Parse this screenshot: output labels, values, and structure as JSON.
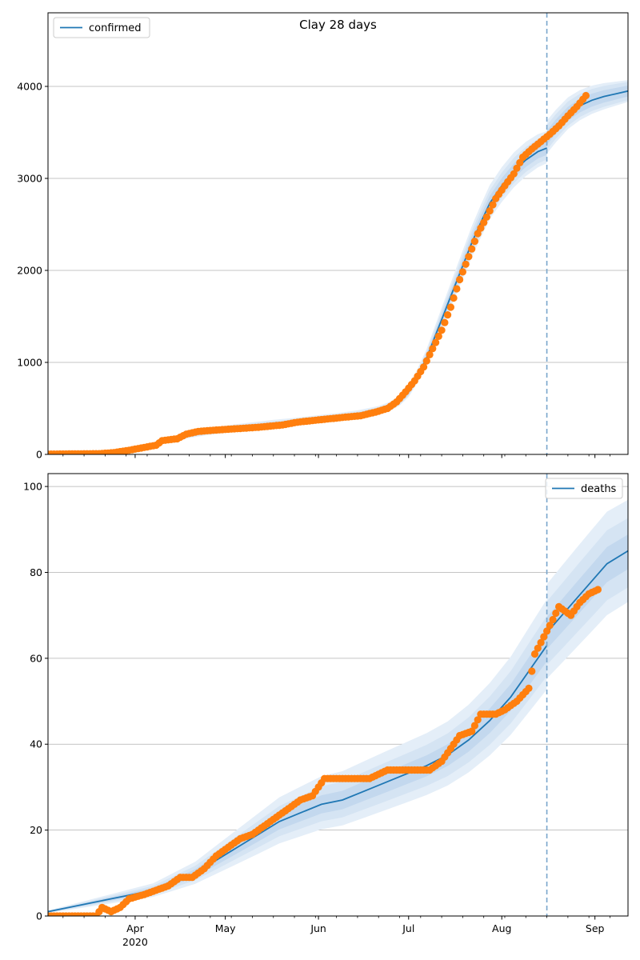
{
  "chart_data": [
    {
      "type": "line",
      "title": "Clay 28 days",
      "xlabel": "",
      "ylabel": "",
      "ylim": [
        0,
        4800
      ],
      "xlim": [
        "2020-03-03",
        "2020-09-12"
      ],
      "grid": "y",
      "legend": "top-left",
      "forecast_start": "2020-08-16",
      "y_ticks": [
        0,
        1000,
        2000,
        3000,
        4000
      ],
      "x_ticks": [
        {
          "date": "2020-04-01",
          "label": "Apr",
          "label2": "2020"
        },
        {
          "date": "2020-05-01",
          "label": "May",
          "label2": ""
        },
        {
          "date": "2020-06-01",
          "label": "Jun",
          "label2": ""
        },
        {
          "date": "2020-07-01",
          "label": "Jul",
          "label2": ""
        },
        {
          "date": "2020-08-01",
          "label": "Aug",
          "label2": ""
        },
        {
          "date": "2020-09-01",
          "label": "Sep",
          "label2": ""
        }
      ],
      "model": {
        "name": "confirmed",
        "color": "#1f77b4",
        "points": [
          [
            "2020-03-03",
            3
          ],
          [
            "2020-03-15",
            8
          ],
          [
            "2020-03-22",
            20
          ],
          [
            "2020-03-29",
            45
          ],
          [
            "2020-04-05",
            90
          ],
          [
            "2020-04-12",
            150
          ],
          [
            "2020-04-19",
            210
          ],
          [
            "2020-04-26",
            250
          ],
          [
            "2020-05-03",
            280
          ],
          [
            "2020-05-10",
            305
          ],
          [
            "2020-05-17",
            330
          ],
          [
            "2020-05-24",
            350
          ],
          [
            "2020-05-31",
            375
          ],
          [
            "2020-06-07",
            400
          ],
          [
            "2020-06-14",
            430
          ],
          [
            "2020-06-21",
            475
          ],
          [
            "2020-06-25",
            520
          ],
          [
            "2020-06-28",
            580
          ],
          [
            "2020-07-01",
            680
          ],
          [
            "2020-07-04",
            850
          ],
          [
            "2020-07-07",
            1050
          ],
          [
            "2020-07-10",
            1300
          ],
          [
            "2020-07-13",
            1550
          ],
          [
            "2020-07-16",
            1800
          ],
          [
            "2020-07-19",
            2050
          ],
          [
            "2020-07-22",
            2300
          ],
          [
            "2020-07-25",
            2520
          ],
          [
            "2020-07-28",
            2730
          ],
          [
            "2020-08-01",
            2920
          ],
          [
            "2020-08-05",
            3080
          ],
          [
            "2020-08-09",
            3200
          ],
          [
            "2020-08-13",
            3290
          ],
          [
            "2020-08-16",
            3330
          ],
          [
            "2020-08-16",
            3440
          ],
          [
            "2020-08-19",
            3560
          ],
          [
            "2020-08-23",
            3700
          ],
          [
            "2020-08-27",
            3790
          ],
          [
            "2020-08-31",
            3850
          ],
          [
            "2020-09-04",
            3890
          ],
          [
            "2020-09-08",
            3920
          ],
          [
            "2020-09-12",
            3950
          ]
        ],
        "bands": [
          {
            "lo": [
              0.8,
              0.9,
              0.97
            ],
            "hi": [
              1.2,
              1.12,
              1.03
            ]
          },
          {
            "lo": [
              0.86,
              0.93,
              0.975
            ],
            "hi": [
              1.14,
              1.08,
              1.025
            ]
          },
          {
            "lo": [
              0.92,
              0.96,
              0.985
            ],
            "hi": [
              1.08,
              1.045,
              1.015
            ]
          }
        ]
      },
      "observed": {
        "color": "#ff7f0e",
        "points": [
          [
            "2020-03-03",
            3
          ],
          [
            "2020-03-20",
            8
          ],
          [
            "2020-03-25",
            20
          ],
          [
            "2020-03-30",
            45
          ],
          [
            "2020-04-03",
            70
          ],
          [
            "2020-04-08",
            100
          ],
          [
            "2020-04-10",
            150
          ],
          [
            "2020-04-15",
            170
          ],
          [
            "2020-04-18",
            220
          ],
          [
            "2020-04-22",
            250
          ],
          [
            "2020-04-28",
            265
          ],
          [
            "2020-05-05",
            280
          ],
          [
            "2020-05-12",
            295
          ],
          [
            "2020-05-20",
            320
          ],
          [
            "2020-05-25",
            350
          ],
          [
            "2020-06-01",
            375
          ],
          [
            "2020-06-10",
            405
          ],
          [
            "2020-06-15",
            420
          ],
          [
            "2020-06-20",
            460
          ],
          [
            "2020-06-24",
            500
          ],
          [
            "2020-06-27",
            570
          ],
          [
            "2020-06-30",
            680
          ],
          [
            "2020-07-03",
            800
          ],
          [
            "2020-07-06",
            950
          ],
          [
            "2020-07-09",
            1150
          ],
          [
            "2020-07-12",
            1350
          ],
          [
            "2020-07-15",
            1600
          ],
          [
            "2020-07-18",
            1900
          ],
          [
            "2020-07-21",
            2150
          ],
          [
            "2020-07-24",
            2400
          ],
          [
            "2020-07-27",
            2580
          ],
          [
            "2020-07-30",
            2780
          ],
          [
            "2020-08-02",
            2920
          ],
          [
            "2020-08-05",
            3050
          ],
          [
            "2020-08-08",
            3230
          ],
          [
            "2020-08-11",
            3320
          ],
          [
            "2020-08-14",
            3400
          ],
          [
            "2020-08-17",
            3480
          ],
          [
            "2020-08-20",
            3570
          ],
          [
            "2020-08-23",
            3680
          ],
          [
            "2020-08-26",
            3780
          ],
          [
            "2020-08-29",
            3900
          ]
        ]
      }
    },
    {
      "type": "line",
      "title": "",
      "xlabel": "",
      "ylabel": "",
      "ylim": [
        0,
        103
      ],
      "xlim": [
        "2020-03-03",
        "2020-09-12"
      ],
      "grid": "y",
      "legend": "top-right",
      "forecast_start": "2020-08-16",
      "y_ticks": [
        0,
        20,
        40,
        60,
        80,
        100
      ],
      "x_ticks": [
        {
          "date": "2020-04-01",
          "label": "Apr",
          "label2": "2020"
        },
        {
          "date": "2020-05-01",
          "label": "May",
          "label2": ""
        },
        {
          "date": "2020-06-01",
          "label": "Jun",
          "label2": ""
        },
        {
          "date": "2020-07-01",
          "label": "Jul",
          "label2": ""
        },
        {
          "date": "2020-08-01",
          "label": "Aug",
          "label2": ""
        },
        {
          "date": "2020-09-01",
          "label": "Sep",
          "label2": ""
        }
      ],
      "model": {
        "name": "deaths",
        "color": "#1f77b4",
        "points": [
          [
            "2020-03-03",
            1
          ],
          [
            "2020-03-10",
            2
          ],
          [
            "2020-03-17",
            3
          ],
          [
            "2020-03-24",
            4
          ],
          [
            "2020-03-31",
            5
          ],
          [
            "2020-04-07",
            6
          ],
          [
            "2020-04-14",
            8
          ],
          [
            "2020-04-21",
            10
          ],
          [
            "2020-04-28",
            13
          ],
          [
            "2020-05-05",
            16
          ],
          [
            "2020-05-12",
            19
          ],
          [
            "2020-05-19",
            22
          ],
          [
            "2020-05-26",
            24
          ],
          [
            "2020-06-02",
            26
          ],
          [
            "2020-06-09",
            27
          ],
          [
            "2020-06-16",
            29
          ],
          [
            "2020-06-23",
            31
          ],
          [
            "2020-06-30",
            33
          ],
          [
            "2020-07-07",
            35
          ],
          [
            "2020-07-14",
            37.5
          ],
          [
            "2020-07-21",
            41
          ],
          [
            "2020-07-28",
            45.5
          ],
          [
            "2020-08-04",
            51
          ],
          [
            "2020-08-11",
            58
          ],
          [
            "2020-08-16",
            63
          ],
          [
            "2020-08-16",
            66
          ],
          [
            "2020-08-21",
            70
          ],
          [
            "2020-08-26",
            74
          ],
          [
            "2020-08-31",
            78
          ],
          [
            "2020-09-05",
            82
          ],
          [
            "2020-09-12",
            85
          ]
        ],
        "bands": [
          {
            "lo": [
              0.72,
              0.78,
              0.86
            ],
            "hi": [
              1.28,
              1.25,
              1.14
            ]
          },
          {
            "lo": [
              0.82,
              0.85,
              0.9
            ],
            "hi": [
              1.18,
              1.16,
              1.09
            ]
          },
          {
            "lo": [
              0.9,
              0.92,
              0.95
            ],
            "hi": [
              1.1,
              1.08,
              1.045
            ]
          }
        ]
      },
      "observed": {
        "color": "#ff7f0e",
        "points": [
          [
            "2020-03-03",
            0
          ],
          [
            "2020-03-09",
            0
          ],
          [
            "2020-03-14",
            0
          ],
          [
            "2020-03-19",
            0
          ],
          [
            "2020-03-21",
            2
          ],
          [
            "2020-03-24",
            1
          ],
          [
            "2020-03-27",
            2
          ],
          [
            "2020-03-30",
            4
          ],
          [
            "2020-04-04",
            5
          ],
          [
            "2020-04-08",
            6
          ],
          [
            "2020-04-12",
            7
          ],
          [
            "2020-04-16",
            9
          ],
          [
            "2020-04-20",
            9
          ],
          [
            "2020-04-24",
            11
          ],
          [
            "2020-04-28",
            14
          ],
          [
            "2020-05-02",
            16
          ],
          [
            "2020-05-06",
            18
          ],
          [
            "2020-05-10",
            19
          ],
          [
            "2020-05-14",
            21
          ],
          [
            "2020-05-18",
            23
          ],
          [
            "2020-05-22",
            25
          ],
          [
            "2020-05-26",
            27
          ],
          [
            "2020-05-30",
            28
          ],
          [
            "2020-06-01",
            30
          ],
          [
            "2020-06-03",
            32
          ],
          [
            "2020-06-10",
            32
          ],
          [
            "2020-06-18",
            32
          ],
          [
            "2020-06-24",
            34
          ],
          [
            "2020-07-02",
            34
          ],
          [
            "2020-07-08",
            34
          ],
          [
            "2020-07-12",
            36
          ],
          [
            "2020-07-15",
            39
          ],
          [
            "2020-07-18",
            42
          ],
          [
            "2020-07-22",
            43
          ],
          [
            "2020-07-25",
            47
          ],
          [
            "2020-07-30",
            47
          ],
          [
            "2020-08-02",
            48
          ],
          [
            "2020-08-06",
            50
          ],
          [
            "2020-08-10",
            53
          ],
          [
            "2020-08-12",
            61
          ],
          [
            "2020-08-15",
            65
          ],
          [
            "2020-08-18",
            69
          ],
          [
            "2020-08-20",
            72
          ],
          [
            "2020-08-24",
            70
          ],
          [
            "2020-08-27",
            73
          ],
          [
            "2020-08-30",
            75
          ],
          [
            "2020-09-02",
            76
          ]
        ]
      }
    }
  ]
}
